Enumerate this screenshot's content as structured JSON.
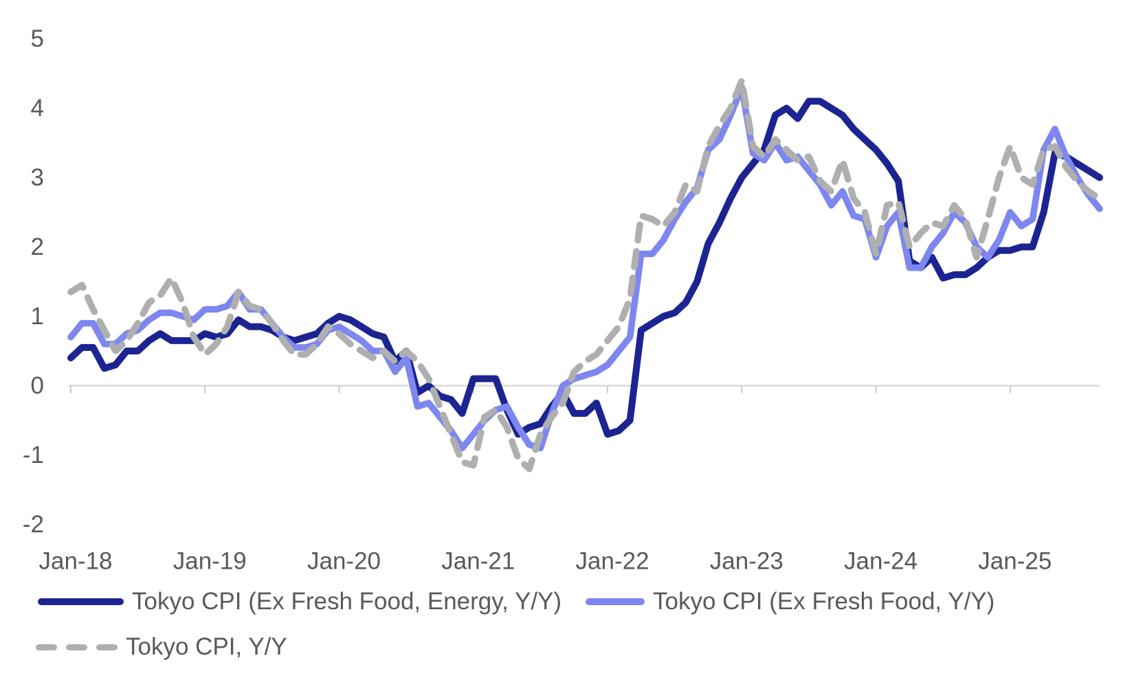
{
  "chart_data": {
    "type": "line",
    "title": "",
    "xlabel": "",
    "ylabel": "",
    "ylim": [
      -2,
      5
    ],
    "yticks": [
      5,
      4,
      3,
      2,
      1,
      0,
      -1,
      -2
    ],
    "xtick_labels": [
      "Jan-18",
      "Jan-19",
      "Jan-20",
      "Jan-21",
      "Jan-22",
      "Jan-23",
      "Jan-24",
      "Jan-25"
    ],
    "grid": "zero-line-only",
    "legend_position": "bottom-left",
    "x_months": [
      "Jan-18",
      "Feb-18",
      "Mar-18",
      "Apr-18",
      "May-18",
      "Jun-18",
      "Jul-18",
      "Aug-18",
      "Sep-18",
      "Oct-18",
      "Nov-18",
      "Dec-18",
      "Jan-19",
      "Feb-19",
      "Mar-19",
      "Apr-19",
      "May-19",
      "Jun-19",
      "Jul-19",
      "Aug-19",
      "Sep-19",
      "Oct-19",
      "Nov-19",
      "Dec-19",
      "Jan-20",
      "Feb-20",
      "Mar-20",
      "Apr-20",
      "May-20",
      "Jun-20",
      "Jul-20",
      "Aug-20",
      "Sep-20",
      "Oct-20",
      "Nov-20",
      "Dec-20",
      "Jan-21",
      "Feb-21",
      "Mar-21",
      "Apr-21",
      "May-21",
      "Jun-21",
      "Jul-21",
      "Aug-21",
      "Sep-21",
      "Oct-21",
      "Nov-21",
      "Dec-21",
      "Jan-22",
      "Feb-22",
      "Mar-22",
      "Apr-22",
      "May-22",
      "Jun-22",
      "Jul-22",
      "Aug-22",
      "Sep-22",
      "Oct-22",
      "Nov-22",
      "Dec-22",
      "Jan-23",
      "Feb-23",
      "Mar-23",
      "Apr-23",
      "May-23",
      "Jun-23",
      "Jul-23",
      "Aug-23",
      "Sep-23",
      "Oct-23",
      "Nov-23",
      "Dec-23",
      "Jan-24",
      "Feb-24",
      "Mar-24",
      "Apr-24",
      "May-24",
      "Jun-24",
      "Jul-24",
      "Aug-24",
      "Sep-24",
      "Oct-24",
      "Nov-24",
      "Dec-24",
      "Jan-25",
      "Feb-25",
      "Mar-25",
      "Apr-25",
      "May-25",
      "Jun-25",
      "Jul-25",
      "Aug-25",
      "Sep-25"
    ],
    "series": [
      {
        "name": "Tokyo CPI (Ex Fresh Food, Energy, Y/Y)",
        "color": "#1c2492",
        "dash": "solid",
        "values": [
          0.4,
          0.55,
          0.55,
          0.25,
          0.3,
          0.5,
          0.5,
          0.65,
          0.75,
          0.65,
          0.65,
          0.65,
          0.75,
          0.7,
          0.75,
          0.95,
          0.85,
          0.85,
          0.8,
          0.7,
          0.65,
          0.7,
          0.75,
          0.9,
          1.0,
          0.95,
          0.85,
          0.75,
          0.7,
          0.35,
          0.5,
          -0.1,
          0.0,
          -0.15,
          -0.2,
          -0.4,
          0.1,
          0.1,
          0.1,
          -0.35,
          -0.7,
          -0.6,
          -0.55,
          -0.3,
          -0.1,
          -0.4,
          -0.4,
          -0.25,
          -0.7,
          -0.65,
          -0.5,
          0.8,
          0.9,
          1.0,
          1.05,
          1.2,
          1.5,
          2.05,
          2.35,
          2.7,
          3.0,
          3.2,
          3.4,
          3.9,
          4.0,
          3.85,
          4.1,
          4.1,
          4.0,
          3.9,
          3.7,
          3.55,
          3.4,
          3.2,
          2.95,
          1.8,
          1.7,
          1.85,
          1.55,
          1.6,
          1.6,
          1.7,
          1.85,
          1.95,
          1.95,
          2.0,
          2.0,
          2.5,
          3.35,
          3.3,
          3.2,
          3.1,
          3.0
        ]
      },
      {
        "name": "Tokyo CPI (Ex Fresh Food, Y/Y)",
        "color": "#7d87ef",
        "dash": "solid",
        "values": [
          0.7,
          0.9,
          0.9,
          0.6,
          0.6,
          0.75,
          0.8,
          0.95,
          1.05,
          1.05,
          1.0,
          0.95,
          1.1,
          1.1,
          1.15,
          1.35,
          1.1,
          1.1,
          0.9,
          0.7,
          0.55,
          0.55,
          0.6,
          0.8,
          0.85,
          0.75,
          0.65,
          0.5,
          0.5,
          0.2,
          0.4,
          -0.3,
          -0.25,
          -0.45,
          -0.65,
          -0.9,
          -0.7,
          -0.5,
          -0.35,
          -0.3,
          -0.6,
          -0.85,
          -0.9,
          -0.4,
          0.0,
          0.1,
          0.15,
          0.2,
          0.3,
          0.5,
          0.7,
          1.9,
          1.9,
          2.1,
          2.4,
          2.65,
          2.85,
          3.4,
          3.55,
          3.9,
          4.3,
          3.35,
          3.25,
          3.5,
          3.25,
          3.3,
          3.1,
          2.9,
          2.6,
          2.8,
          2.45,
          2.4,
          1.85,
          2.3,
          2.5,
          1.7,
          1.7,
          2.0,
          2.2,
          2.5,
          2.35,
          2.0,
          1.85,
          2.1,
          2.5,
          2.3,
          2.4,
          3.4,
          3.7,
          3.3,
          3.0,
          2.75,
          2.55
        ]
      },
      {
        "name": "Tokyo CPI, Y/Y",
        "color": "#afafaf",
        "dash": "dashed",
        "values": [
          1.35,
          1.45,
          1.1,
          0.8,
          0.5,
          0.65,
          0.9,
          1.2,
          1.3,
          1.55,
          1.2,
          0.7,
          0.45,
          0.6,
          0.85,
          1.35,
          1.15,
          1.1,
          0.9,
          0.65,
          0.45,
          0.45,
          0.6,
          0.85,
          0.75,
          0.6,
          0.5,
          0.4,
          0.5,
          0.35,
          0.5,
          0.35,
          0.1,
          -0.3,
          -0.7,
          -1.1,
          -1.15,
          -0.45,
          -0.35,
          -0.6,
          -1.05,
          -1.2,
          -0.7,
          -0.45,
          -0.25,
          0.2,
          0.35,
          0.45,
          0.65,
          0.85,
          1.25,
          2.45,
          2.4,
          2.3,
          2.5,
          2.9,
          2.8,
          3.45,
          3.75,
          4.0,
          4.4,
          3.45,
          3.3,
          3.55,
          3.4,
          3.25,
          3.3,
          2.95,
          2.8,
          3.25,
          2.7,
          2.5,
          1.9,
          2.6,
          2.65,
          2.0,
          2.2,
          2.35,
          2.3,
          2.6,
          2.4,
          1.85,
          2.4,
          3.0,
          3.45,
          3.0,
          2.9,
          3.4,
          3.45,
          3.15,
          2.95,
          2.8,
          2.7
        ]
      }
    ]
  },
  "colors": {
    "background": "#ffffff",
    "axis_text": "#595959",
    "zero_line": "#d9d9d9",
    "tick_mark": "#c9c9c9",
    "series_navy": "#1c2492",
    "series_periwinkle": "#7d87ef",
    "series_gray": "#afafaf"
  }
}
